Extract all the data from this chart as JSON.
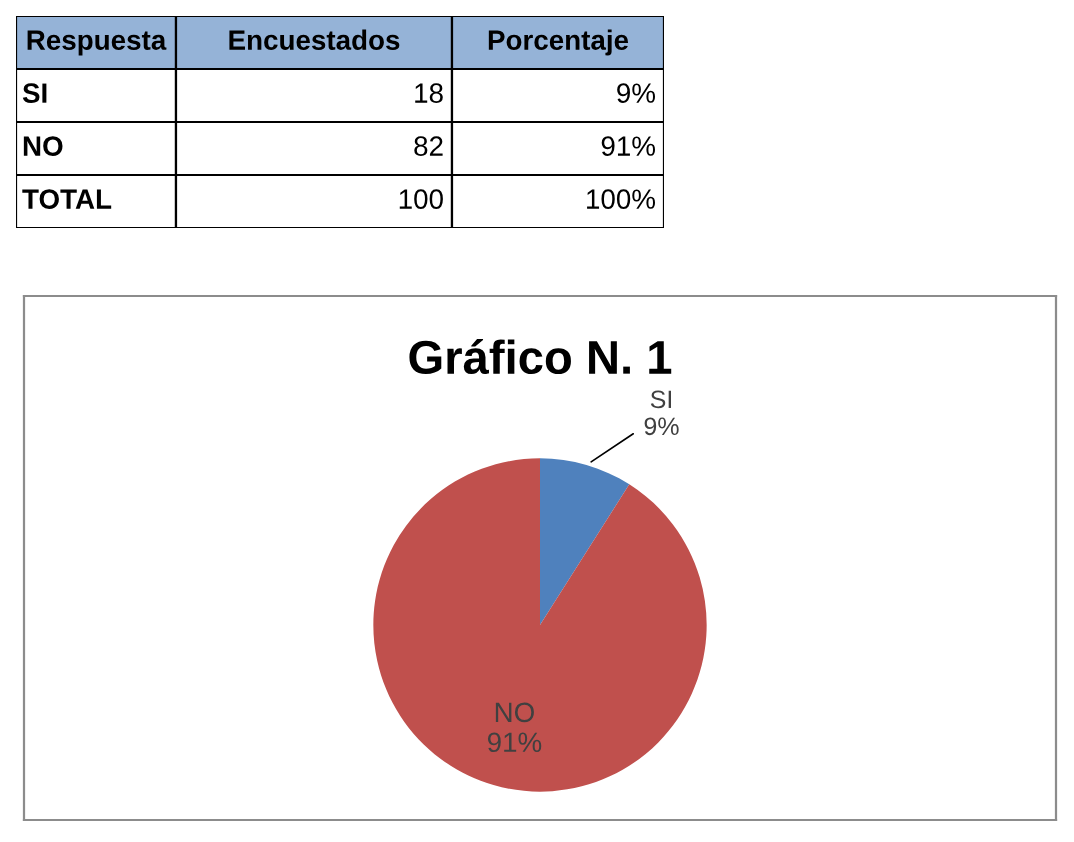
{
  "chart_data": [
    {
      "type": "other",
      "annotations": [
        "Respuesta",
        "Encuestados",
        "Porcentaje",
        "SI",
        "18",
        "9%",
        "NO",
        "82",
        "91%",
        "TOTAL",
        "100",
        "100%"
      ]
    },
    {
      "type": "pie",
      "title": "Gráfico N. 1",
      "categories": [
        "SI",
        "NO"
      ],
      "values": [
        9,
        91
      ],
      "colors": [
        "#4f81bd",
        "#c0504d"
      ],
      "value_labels": [
        "9%",
        "91%"
      ]
    }
  ]
}
